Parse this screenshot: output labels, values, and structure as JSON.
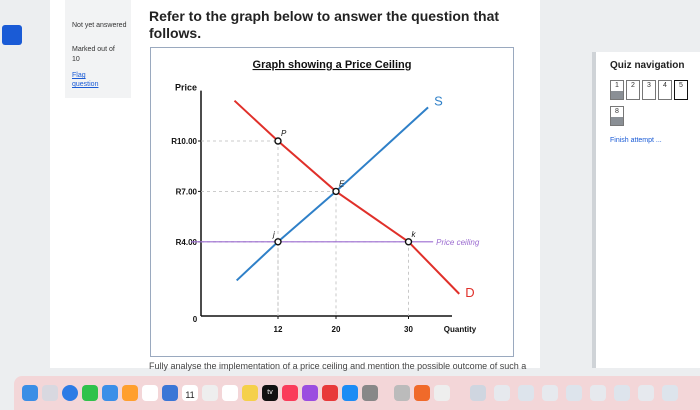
{
  "sidebar": {
    "status": "Not yet answered",
    "marked": "Marked out of",
    "mark": "10",
    "flag": "Flag question"
  },
  "question": {
    "text": "Refer to the graph below to answer the question that follows.",
    "next": "Fully analyse the implementation of a price ceiling and mention the possible outcome of such a"
  },
  "quiz_nav": {
    "title": "Quiz navigation",
    "buttons": [
      "1",
      "2",
      "3",
      "4",
      "5",
      "8"
    ],
    "finish": "Finish attempt ..."
  },
  "dock": {
    "calendar_day": "11",
    "tv": "tv"
  },
  "chart_data": {
    "type": "line",
    "title": "Graph showing a Price Ceiling",
    "y_label": "Price",
    "x_label": "Quantity",
    "xlim": [
      0,
      36
    ],
    "ylim": [
      0,
      13
    ],
    "xticks": [
      12,
      20,
      30
    ],
    "yticks": [
      {
        "value": 4,
        "label": "R4.00"
      },
      {
        "value": 7,
        "label": "R7.00"
      },
      {
        "value": 10,
        "label": "R10.00"
      }
    ],
    "series": [
      {
        "name": "S",
        "color": "#2f80c8",
        "x": [
          6.3,
          12,
          20,
          32.7
        ],
        "values": [
          1.7,
          4,
          7,
          12
        ]
      },
      {
        "name": "D",
        "color": "#e0302a",
        "x": [
          6,
          12,
          20,
          30,
          37
        ],
        "values": [
          12.4,
          10,
          7,
          4,
          0.9
        ]
      },
      {
        "name": "Price ceiling",
        "color": "#9b6bd0",
        "x": [
          0,
          33.4
        ],
        "values": [
          4,
          4
        ]
      }
    ],
    "points": [
      {
        "label": "P",
        "x": 12,
        "y": 10
      },
      {
        "label": "E",
        "x": 20,
        "y": 7
      },
      {
        "label": "j",
        "x": 12,
        "y": 4
      },
      {
        "label": "k",
        "x": 30,
        "y": 4
      }
    ]
  }
}
